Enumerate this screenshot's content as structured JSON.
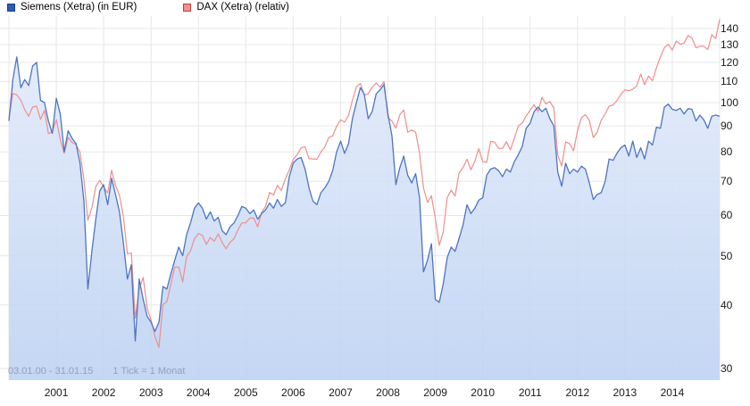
{
  "legend": [
    {
      "label": "Siemens (Xetra) (in EUR)",
      "swatch_fill": "#2a5db0",
      "swatch_border": "#17407f"
    },
    {
      "label": "DAX (Xetra) (relativ)",
      "swatch_fill": "#f2908d",
      "swatch_border": "#c03c39"
    }
  ],
  "footer": {
    "date_range": "03.01.00 - 31.01.15",
    "tick_info": "1 Tick = 1 Monat"
  },
  "colors": {
    "siemens_line": "#4d74c4",
    "dax_line": "#ef8e8c",
    "grid": "#e7e7e7",
    "fill_top": "#e6edfb",
    "fill_bottom": "#bcd1f2",
    "axis_text": "#1a1a1a",
    "footer_text": "#94a1b8"
  },
  "chart_data": {
    "type": "line",
    "title": "Siemens (Xetra) vs DAX (Xetra) relative, monthly, 03.01.2000 - 31.01.2015",
    "x_unit": "month",
    "months": 181,
    "x_start": "2000-01",
    "x_end": "2015-01",
    "x_year_labels": [
      "2001",
      "2002",
      "2003",
      "2004",
      "2005",
      "2006",
      "2007",
      "2008",
      "2009",
      "2010",
      "2011",
      "2012",
      "2013",
      "2014"
    ],
    "y_scale": "log",
    "y_ticks": [
      30,
      40,
      50,
      60,
      70,
      80,
      90,
      100,
      110,
      120,
      130,
      140
    ],
    "ylim": [
      28,
      150
    ],
    "grid": true,
    "legend_position": "top-left",
    "series": [
      {
        "name": "Siemens (Xetra) (in EUR)",
        "style": "area",
        "values": [
          92,
          111,
          123,
          107,
          111,
          108,
          118,
          120,
          101,
          100,
          92,
          87,
          102,
          95,
          80,
          88,
          85,
          83,
          76,
          64,
          43,
          51,
          59,
          67,
          69,
          63,
          71,
          66,
          61,
          53,
          45,
          48,
          34,
          45,
          41,
          38,
          37,
          35.5,
          37,
          43.5,
          43,
          46,
          49,
          52,
          50,
          55,
          58,
          62,
          63.5,
          62,
          59,
          61,
          58.5,
          59.5,
          56,
          55,
          57,
          58,
          60,
          62.5,
          62,
          60.5,
          61.5,
          59,
          60.5,
          61.5,
          63.5,
          62,
          64.5,
          62.5,
          63.5,
          71.5,
          76,
          77.5,
          78,
          74,
          68,
          64,
          63,
          66.5,
          68,
          70,
          73.5,
          80,
          84,
          79.5,
          83,
          93,
          100,
          107,
          104,
          93,
          96,
          104,
          106,
          108.5,
          95,
          86,
          69,
          74.5,
          78.5,
          72,
          69.5,
          72.5,
          65,
          46.5,
          49,
          52.8,
          41,
          40.5,
          44,
          49.6,
          52,
          51,
          54,
          57.5,
          63,
          60.5,
          62,
          64.3,
          65,
          72,
          74,
          74.5,
          73.5,
          71.5,
          74,
          73,
          76.5,
          79,
          82,
          89,
          91,
          96,
          98,
          96,
          97.5,
          93,
          90,
          73,
          68.5,
          76,
          72.5,
          74,
          73,
          75,
          74,
          69.5,
          64.5,
          66,
          66.5,
          70,
          77.5,
          77,
          79.5,
          81.5,
          82.5,
          78.5,
          84,
          78,
          81.5,
          77.5,
          84,
          82.5,
          89.5,
          89,
          98,
          99.3,
          97,
          96.5,
          97.5,
          95,
          97.3,
          97,
          92,
          94.5,
          92.5,
          89,
          94,
          94.5,
          94
        ]
      },
      {
        "name": "DAX (Xetra) (relativ)",
        "style": "line",
        "values": [
          93.2,
          104.2,
          103.6,
          101.1,
          96.9,
          94,
          98,
          98.4,
          92.7,
          96.5,
          86.9,
          87.7,
          92.6,
          84.6,
          79.5,
          85.4,
          83.5,
          82.6,
          79.9,
          70.7,
          58.7,
          62.1,
          68.4,
          70.3,
          68.3,
          66.4,
          73.6,
          68.7,
          65.7,
          59.7,
          50.4,
          50.6,
          37.7,
          43,
          45.3,
          39.4,
          37.4,
          34.7,
          33,
          40.1,
          40.6,
          43.9,
          47.5,
          47.5,
          44.4,
          49.8,
          51.1,
          54,
          55.3,
          54.8,
          52.6,
          54.3,
          53.4,
          55.2,
          53.1,
          51.6,
          53.1,
          54,
          56.2,
          58,
          58,
          59.3,
          59.3,
          57,
          60.8,
          62.5,
          66.6,
          65.8,
          68.8,
          67.2,
          70.8,
          73.7,
          77.3,
          79,
          81.4,
          81.9,
          77.6,
          77.5,
          77.4,
          79.9,
          81.8,
          85.4,
          86,
          89.9,
          92.5,
          91.5,
          94.3,
          101,
          107.4,
          109.1,
          103.4,
          104.1,
          107.1,
          109.3,
          107.3,
          110,
          93.4,
          92,
          89.1,
          94.7,
          96.7,
          87.5,
          88.3,
          87.5,
          79.5,
          68,
          63.6,
          65.6,
          59.1,
          52.4,
          55.7,
          65,
          67.3,
          65.5,
          72.7,
          74.5,
          77.4,
          73.8,
          76.7,
          81.2,
          76.5,
          76.3,
          83.9,
          83.6,
          81.3,
          81.3,
          83.8,
          80.8,
          84.9,
          90,
          91.2,
          94.2,
          96.5,
          99.1,
          96,
          102.4,
          99.4,
          100.5,
          97.6,
          78.9,
          75,
          83.7,
          83,
          80.4,
          88,
          93.4,
          94.7,
          92.2,
          85.4,
          87.5,
          92.3,
          95,
          98.4,
          99,
          100.9,
          103.8,
          106,
          105.5,
          106.2,
          107.9,
          113.8,
          108.5,
          112.8,
          110.4,
          117.1,
          123.1,
          128.2,
          130.2,
          126.8,
          132.1,
          130.3,
          130.9,
          135.5,
          134,
          128.2,
          129.1,
          129.1,
          127.1,
          136,
          133.7,
          145.8
        ]
      }
    ]
  }
}
